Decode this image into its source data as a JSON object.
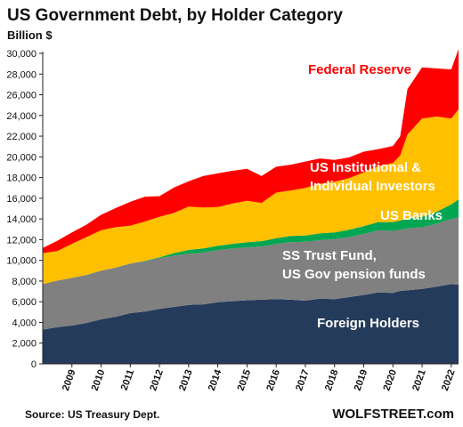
{
  "chart_data": {
    "type": "area",
    "stacked": true,
    "title": "US Government Debt, by Holder Category",
    "ylabel": "Billion $",
    "ylim": [
      0,
      30000
    ],
    "yticks": [
      0,
      2000,
      4000,
      6000,
      8000,
      10000,
      12000,
      14000,
      16000,
      18000,
      20000,
      22000,
      24000,
      26000,
      28000,
      30000
    ],
    "ytick_labels": [
      "0",
      "2,000",
      "4,000",
      "6,000",
      "8,000",
      "10,000",
      "12,000",
      "14,000",
      "16,000",
      "18,000",
      "20,000",
      "22,000",
      "24,000",
      "26,000",
      "28,000",
      "30,000"
    ],
    "xticks": [
      "2009",
      "2010",
      "2011",
      "2012",
      "2013",
      "2014",
      "2015",
      "2016",
      "2017",
      "2018",
      "2019",
      "2020",
      "2021",
      "2022"
    ],
    "x": [
      2008.0,
      2008.5,
      2009.0,
      2009.5,
      2010.0,
      2010.5,
      2011.0,
      2011.5,
      2012.0,
      2012.5,
      2013.0,
      2013.5,
      2014.0,
      2014.5,
      2015.0,
      2015.5,
      2016.0,
      2016.5,
      2017.0,
      2017.5,
      2018.0,
      2018.5,
      2019.0,
      2019.5,
      2020.0,
      2020.25,
      2020.5,
      2021.0,
      2021.5,
      2022.0,
      2022.25
    ],
    "series": [
      {
        "name": "Foreign Holders",
        "color": "#243b5b",
        "values": [
          3300,
          3550,
          3700,
          3950,
          4300,
          4550,
          4900,
          5050,
          5300,
          5500,
          5700,
          5750,
          5950,
          6050,
          6150,
          6200,
          6250,
          6200,
          6100,
          6300,
          6250,
          6450,
          6650,
          6900,
          6850,
          7050,
          7100,
          7250,
          7450,
          7700,
          7650
        ]
      },
      {
        "name": "SS Trust Fund, US Gov pension funds",
        "color": "#808080",
        "values": [
          4400,
          4500,
          4600,
          4650,
          4700,
          4750,
          4800,
          4850,
          4900,
          4950,
          4950,
          5000,
          5050,
          5100,
          5100,
          5150,
          5350,
          5550,
          5700,
          5650,
          5800,
          5800,
          5900,
          6000,
          6000,
          5900,
          6000,
          5950,
          6100,
          6300,
          6500
        ]
      },
      {
        "name": "US Banks",
        "color": "#00a651",
        "values": [
          0,
          0,
          0,
          0,
          0,
          0,
          0,
          50,
          100,
          250,
          350,
          400,
          400,
          450,
          500,
          500,
          550,
          600,
          600,
          650,
          650,
          700,
          750,
          800,
          850,
          900,
          950,
          1000,
          1150,
          1400,
          1750
        ]
      },
      {
        "name": "US Institutional & Individual Investors",
        "color": "#ffc000",
        "values": [
          3000,
          2850,
          3300,
          3650,
          3900,
          3900,
          3650,
          3800,
          3900,
          3900,
          4200,
          3950,
          3750,
          3900,
          4000,
          3700,
          4400,
          4400,
          4600,
          4800,
          4900,
          5000,
          5200,
          5400,
          5700,
          6300,
          8100,
          9500,
          9200,
          8300,
          8700
        ]
      },
      {
        "name": "Federal Reserve",
        "color": "#ff0000",
        "values": [
          500,
          1000,
          1100,
          1200,
          1500,
          1850,
          2300,
          2400,
          2000,
          2450,
          2450,
          3050,
          3250,
          3150,
          3100,
          2600,
          2500,
          2500,
          2550,
          2450,
          2100,
          2000,
          2000,
          1650,
          1650,
          1850,
          4400,
          4950,
          4650,
          4750,
          5800
        ]
      }
    ]
  },
  "footer": {
    "source": "Source: US Treasury Dept.",
    "brand": "WOLFSTREET.com"
  }
}
